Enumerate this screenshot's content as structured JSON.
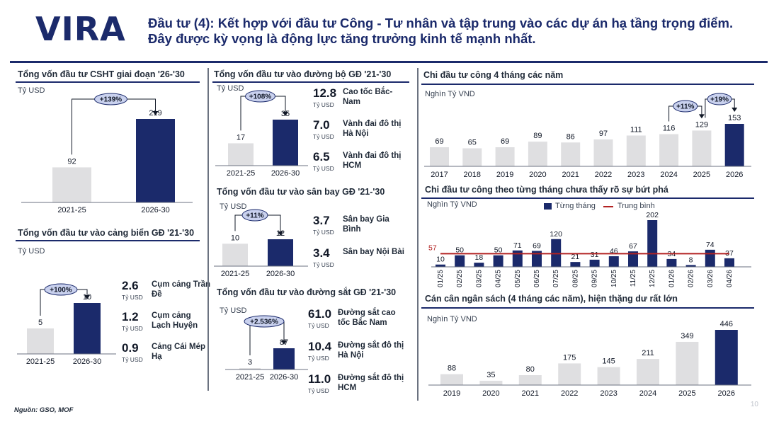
{
  "header": {
    "logo_text": "VIRA",
    "title": "Đầu tư (4): Kết hợp với đầu tư Công - Tư nhân và tập trung vào các dự án hạ tầng trọng điểm. Đây được kỳ vọng là động lực tăng trưởng kinh tế mạnh nhất."
  },
  "colors": {
    "navy": "#1b2a6b",
    "light_bar": "#dfdfe1",
    "red_line": "#b22222",
    "badge_bg": "#c9d1ee"
  },
  "footer": {
    "source": "Nguồn: GSO, MOF",
    "page": "10"
  },
  "kpis": {
    "road": [
      {
        "value": "12.8",
        "unit": "Tỷ USD",
        "label": "Cao tốc Bắc-Nam"
      },
      {
        "value": "7.0",
        "unit": "Tỷ USD",
        "label": "Vành đai đô thị Hà Nội"
      },
      {
        "value": "6.5",
        "unit": "Tỷ USD",
        "label": "Vành đai đô thị HCM"
      }
    ],
    "airport": [
      {
        "value": "3.7",
        "unit": "Tỷ USD",
        "label": "Sân bay Gia Bình"
      },
      {
        "value": "3.4",
        "unit": "Tỷ USD",
        "label": "Sân bay Nội Bài"
      }
    ],
    "rail": [
      {
        "value": "61.0",
        "unit": "Tỷ USD",
        "label": "Đường sắt cao tốc Bắc Nam"
      },
      {
        "value": "10.4",
        "unit": "Tỷ USD",
        "label": "Đường sắt đô thị Hà Nội"
      },
      {
        "value": "11.0",
        "unit": "Tỷ USD",
        "label": "Đường sắt đô thị HCM"
      }
    ],
    "port": [
      {
        "value": "2.6",
        "unit": "Tỷ USD",
        "label": "Cụm cảng Trần Đề"
      },
      {
        "value": "1.2",
        "unit": "Tỷ USD",
        "label": "Cụm cảng Lạch Huyện"
      },
      {
        "value": "0.9",
        "unit": "Tỷ USD",
        "label": "Cảng Cái Mép Hạ"
      }
    ]
  },
  "chart_data": [
    {
      "id": "csht",
      "type": "bar",
      "title": "Tổng vốn đầu tư CSHT giai đoạn '26-'30",
      "unit": "Tỷ USD",
      "categories": [
        "2021-25",
        "2026-30"
      ],
      "values": [
        92,
        219
      ],
      "growth_label": "+139%"
    },
    {
      "id": "port",
      "type": "bar",
      "title": "Tổng vốn đầu tư vào cảng biển GĐ '21-'30",
      "unit": "Tỷ USD",
      "categories": [
        "2021-25",
        "2026-30"
      ],
      "values": [
        5,
        10
      ],
      "growth_label": "+100%"
    },
    {
      "id": "road",
      "type": "bar",
      "title": "Tổng vốn đầu tư vào đường bộ GĐ '21-'30",
      "unit": "Tỷ USD",
      "categories": [
        "2021-25",
        "2026-30"
      ],
      "values": [
        17,
        35
      ],
      "growth_label": "+108%"
    },
    {
      "id": "airport",
      "type": "bar",
      "title": "Tổng vốn đầu tư vào sân bay GĐ '21-'30",
      "unit": "Tỷ USD",
      "categories": [
        "2021-25",
        "2026-30"
      ],
      "values": [
        10,
        12
      ],
      "growth_label": "+11%"
    },
    {
      "id": "rail",
      "type": "bar",
      "title": "Tổng vốn đầu tư vào đường sắt GĐ '21-'30",
      "unit": "Tỷ USD",
      "categories": [
        "2021-25",
        "2026-30"
      ],
      "values": [
        3,
        87
      ],
      "growth_label": "+2.536%"
    },
    {
      "id": "public4m",
      "type": "bar",
      "title": "Chi đầu tư công 4 tháng các năm",
      "unit": "Nghìn Tỷ VND",
      "categories": [
        "2017",
        "2018",
        "2019",
        "2020",
        "2021",
        "2022",
        "2023",
        "2024",
        "2025",
        "2026"
      ],
      "values": [
        69,
        65,
        69,
        89,
        86,
        97,
        111,
        116,
        129,
        153
      ],
      "growth_labels": [
        "+11%",
        "+19%"
      ]
    },
    {
      "id": "monthly",
      "type": "bar",
      "title": "Chi đầu tư công theo từng tháng chưa thấy rõ sự bứt phá",
      "unit": "Nghìn Tỷ VND",
      "categories": [
        "01/25",
        "02/25",
        "03/25",
        "04/25",
        "05/25",
        "06/25",
        "07/25",
        "08/25",
        "09/25",
        "10/25",
        "11/25",
        "12/25",
        "01/26",
        "02/26",
        "03/26",
        "04/26"
      ],
      "series": [
        {
          "name": "Từng tháng",
          "values": [
            10,
            50,
            18,
            50,
            71,
            69,
            120,
            21,
            31,
            46,
            67,
            202,
            34,
            8,
            74,
            37
          ]
        },
        {
          "name": "Trung bình",
          "values": [
            57,
            57,
            57,
            57,
            57,
            57,
            57,
            57,
            57,
            57,
            57,
            57,
            57,
            57,
            57,
            57
          ]
        }
      ],
      "avg_label": "57"
    },
    {
      "id": "budget",
      "type": "bar",
      "title": "Cán cân ngân sách (4 tháng các năm), hiện thặng dư rất lớn",
      "unit": "Nghìn Tỷ VND",
      "categories": [
        "2019",
        "2020",
        "2021",
        "2022",
        "2023",
        "2024",
        "2025",
        "2026"
      ],
      "values": [
        88,
        35,
        80,
        175,
        145,
        211,
        349,
        446
      ]
    }
  ]
}
